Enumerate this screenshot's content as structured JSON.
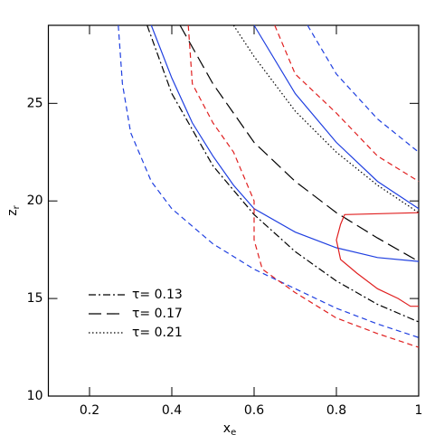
{
  "chart_data": {
    "type": "line",
    "x_label": "x",
    "x_label_sub": "e",
    "y_label": "z",
    "y_label_sub": "r",
    "xlim": [
      0.1,
      1.0
    ],
    "ylim": [
      10,
      29
    ],
    "xticks": [
      0.2,
      0.4,
      0.6,
      0.8,
      1
    ],
    "yticks": [
      10,
      15,
      20,
      25
    ],
    "legend": "lower left",
    "series": [
      {
        "name": "τ= 0.13",
        "color": "#000000",
        "dash": "dashdot",
        "x": [
          0.34,
          0.4,
          0.5,
          0.6,
          0.7,
          0.8,
          0.9,
          1.0
        ],
        "values": [
          29,
          25.5,
          21.8,
          19.3,
          17.4,
          15.9,
          14.7,
          13.8
        ]
      },
      {
        "name": "τ= 0.17",
        "color": "#000000",
        "dash": "longdash",
        "x": [
          0.42,
          0.5,
          0.6,
          0.7,
          0.8,
          0.9,
          1.0
        ],
        "values": [
          29,
          26,
          23,
          21,
          19.4,
          18.1,
          16.9
        ]
      },
      {
        "name": "τ= 0.21",
        "color": "#000000",
        "dash": "dotted",
        "x": [
          0.55,
          0.6,
          0.7,
          0.8,
          0.9,
          1.0
        ],
        "values": [
          29,
          27.4,
          24.6,
          22.5,
          20.8,
          19.4
        ]
      },
      {
        "color": "#1f3fe0",
        "dash": "solid",
        "x": [
          0.35,
          0.4,
          0.45,
          0.5,
          0.55,
          0.6,
          0.7,
          0.8,
          0.9,
          1.0,
          null,
          0.6,
          0.7,
          0.8,
          0.9,
          1.0
        ],
        "values": [
          29,
          26.3,
          24,
          22.3,
          20.8,
          19.6,
          18.4,
          17.6,
          17.1,
          16.9,
          null,
          29,
          25.5,
          23,
          21,
          19.6
        ]
      },
      {
        "color": "#1f3fe0",
        "dash": "dashed",
        "x": [
          0.27,
          0.28,
          0.3,
          0.35,
          0.4,
          0.5,
          0.6,
          0.7,
          0.8,
          0.9,
          1.0,
          null,
          0.73,
          0.8,
          0.9,
          1.0
        ],
        "values": [
          29,
          26,
          23.5,
          21,
          19.6,
          17.8,
          16.5,
          15.5,
          14.5,
          13.7,
          13.0,
          null,
          29,
          26.5,
          24.2,
          22.5
        ]
      },
      {
        "color": "#e02020",
        "dash": "dashed",
        "x": [
          0.44,
          0.45,
          0.5,
          0.55,
          0.6,
          0.6,
          0.62,
          0.7,
          0.8,
          0.9,
          1.0,
          null,
          0.65,
          0.7,
          0.8,
          0.9,
          1.0
        ],
        "values": [
          29,
          26,
          24,
          22.5,
          20,
          18,
          16.5,
          15.3,
          14,
          13.2,
          12.5,
          null,
          29,
          26.5,
          24.5,
          22.3,
          21
        ]
      },
      {
        "color": "#e02020",
        "dash": "solid",
        "x": [
          1.0,
          0.82,
          0.81,
          0.8,
          0.81,
          0.85,
          0.9,
          0.95,
          0.98,
          1.0
        ],
        "values": [
          19.4,
          19.3,
          18.8,
          18.0,
          17.0,
          16.3,
          15.5,
          15.0,
          14.6,
          14.6
        ]
      }
    ]
  }
}
